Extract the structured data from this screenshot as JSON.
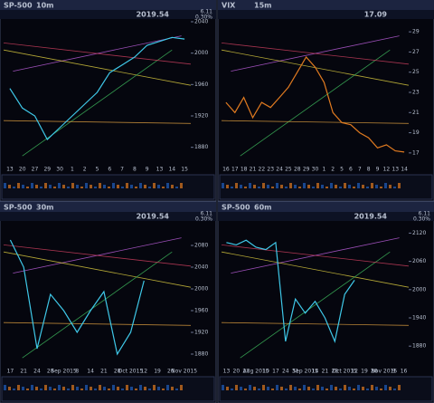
{
  "chart_data": [
    {
      "type": "line",
      "title": "SP-500",
      "timeframe": "10m",
      "last": 2019.54,
      "change": 6.11,
      "change_pct": "0.30%",
      "categories": [
        "13",
        "20",
        "27",
        "29",
        "30",
        "1",
        "2",
        "5",
        "6",
        "7",
        "8",
        "9",
        "13",
        "14",
        "15"
      ],
      "values": [
        1955,
        1930,
        1920,
        1890,
        1905,
        1920,
        1935,
        1950,
        1975,
        1985,
        1995,
        2010,
        2015,
        2020,
        2018
      ],
      "color": "#3fc8e8",
      "ylim": [
        1860,
        2040
      ],
      "yticks": [
        1880,
        1920,
        1960,
        2000,
        2040
      ]
    },
    {
      "type": "line",
      "title": "VIX",
      "timeframe": "15m",
      "last": 17.09,
      "categories": [
        "16",
        "17",
        "18",
        "21",
        "22",
        "23",
        "24",
        "25",
        "28",
        "29",
        "30",
        "1",
        "2",
        "5",
        "6",
        "7",
        "8",
        "9",
        "12",
        "13",
        "14"
      ],
      "values": [
        22,
        21,
        22.5,
        20.5,
        22,
        21.5,
        22.5,
        23.5,
        25,
        26.5,
        25.5,
        24,
        21,
        20,
        19.8,
        19,
        18.5,
        17.5,
        17.8,
        17.2,
        17.09
      ],
      "color": "#e07a20",
      "ylim": [
        16,
        30
      ],
      "yticks": [
        17,
        19,
        21,
        23,
        25,
        27,
        29
      ]
    },
    {
      "type": "line",
      "title": "SP-500",
      "timeframe": "30m",
      "last": 2019.54,
      "change": 6.11,
      "change_pct": "0.30%",
      "categories": [
        "17",
        "21",
        "24",
        "28",
        "Sep 2015",
        "8",
        "14",
        "21",
        "28",
        "Oct 2015",
        "12",
        "19",
        "26",
        "Nov 2015"
      ],
      "values": [
        2090,
        2040,
        1890,
        1990,
        1960,
        1920,
        1960,
        1995,
        1880,
        1920,
        2015,
        null,
        null,
        null
      ],
      "color": "#3fc8e8",
      "ylim": [
        1860,
        2120
      ],
      "yticks": [
        1880,
        1920,
        1960,
        2000,
        2040,
        2080
      ]
    },
    {
      "type": "line",
      "title": "SP-500",
      "timeframe": "60m",
      "last": 2019.54,
      "change": 6.11,
      "change_pct": "0.30%",
      "categories": [
        "13",
        "20",
        "27",
        "Aug 2015",
        "10",
        "17",
        "24",
        "31",
        "Sep 2015",
        "14",
        "21",
        "28",
        "Oct 2015",
        "12",
        "19",
        "26",
        "Nov 2015",
        "9",
        "16"
      ],
      "values": [
        2100,
        2095,
        2105,
        2090,
        2085,
        2100,
        1890,
        1980,
        1950,
        1975,
        1940,
        1890,
        1990,
        2020,
        null,
        null,
        null,
        null,
        null
      ],
      "color": "#3fc8e8",
      "ylim": [
        1840,
        2140
      ],
      "yticks": [
        1880,
        1940,
        2000,
        2060,
        2120
      ]
    }
  ]
}
